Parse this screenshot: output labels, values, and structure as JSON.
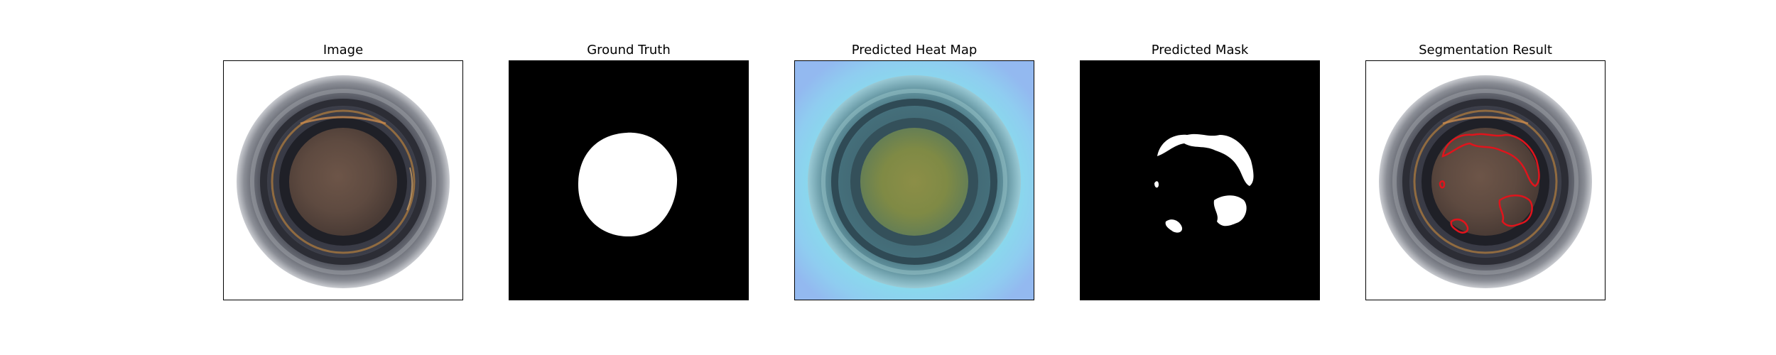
{
  "panels": [
    {
      "title": "Image"
    },
    {
      "title": "Ground Truth"
    },
    {
      "title": "Predicted Heat Map"
    },
    {
      "title": "Predicted Mask"
    },
    {
      "title": "Segmentation Result"
    }
  ],
  "colors": {
    "background": "#ffffff",
    "mask_on": "#ffffff",
    "mask_off": "#000000",
    "contour": "#e0141c",
    "heatmap_low": "#8ec5f2",
    "heatmap_mid": "#7ee6e8"
  }
}
